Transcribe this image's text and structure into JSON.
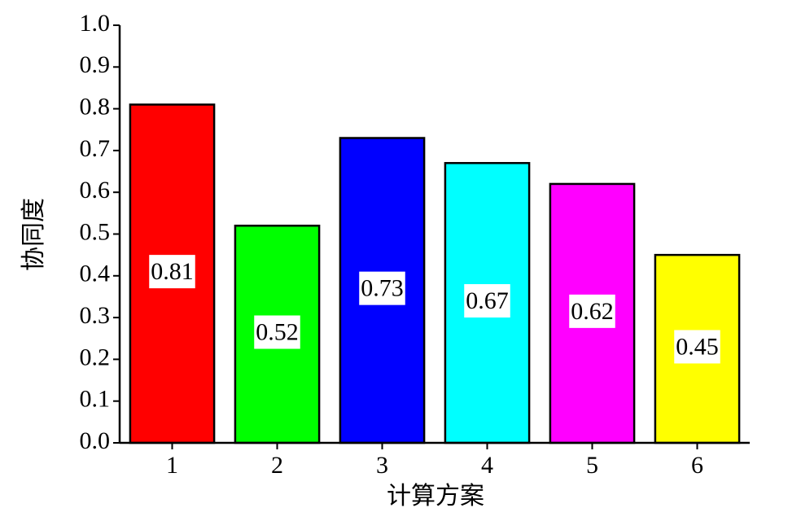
{
  "chart_data": {
    "type": "bar",
    "x_label": "计算方案",
    "y_label": "协同度",
    "categories": [
      "1",
      "2",
      "3",
      "4",
      "5",
      "6"
    ],
    "values": [
      0.81,
      0.52,
      0.73,
      0.67,
      0.62,
      0.45
    ],
    "colors": [
      "#ff0000",
      "#00ff00",
      "#0000ff",
      "#00ffff",
      "#ff00ff",
      "#ffff00"
    ],
    "ylim": [
      0,
      1.0
    ],
    "yticks": [
      {
        "value": 0,
        "label": "0.0"
      },
      0.1,
      0.2,
      0.3,
      0.4,
      0.5,
      0.6,
      0.7,
      0.8,
      0.9,
      {
        "value": 1.0,
        "label": "1.0"
      }
    ],
    "grid": false
  }
}
